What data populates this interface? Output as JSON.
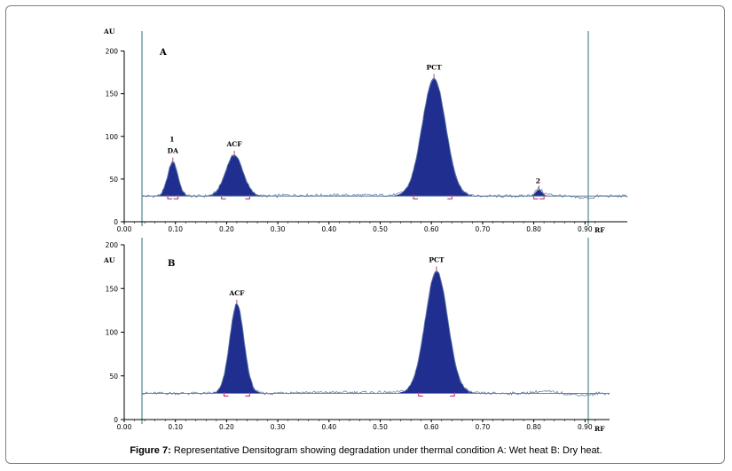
{
  "caption": {
    "label": "Figure 7:",
    "text": "Representative Densitogram showing degradation under thermal condition A: Wet heat B: Dry heat."
  },
  "colors": {
    "peak_fill": "#1f2e8f",
    "baseline": "#6a85a6",
    "frame_axis": "#2d6f78",
    "bracket": "#c0196f"
  },
  "chart_data": [
    {
      "type": "area",
      "panel_label": "A",
      "xlabel": "RF",
      "ylabel": "AU",
      "xlim": [
        0.0,
        0.92
      ],
      "ylim": [
        0,
        200
      ],
      "x_ticks": [
        "0.00",
        "0.10",
        "0.20",
        "0.30",
        "0.40",
        "0.50",
        "0.60",
        "0.70",
        "0.80",
        "0.90"
      ],
      "y_ticks": [
        "0",
        "50",
        "100",
        "150",
        "200"
      ],
      "baseline": 30,
      "peaks": [
        {
          "label": "DA",
          "number": "1",
          "rf": 0.095,
          "height": 70,
          "width": 0.01,
          "x_start": 0.085,
          "x_end": 0.105
        },
        {
          "label": "ACF",
          "number": "",
          "rf": 0.215,
          "height": 78,
          "width": 0.017,
          "x_start": 0.19,
          "x_end": 0.245
        },
        {
          "label": "PCT",
          "number": "",
          "rf": 0.605,
          "height": 168,
          "width": 0.023,
          "x_start": 0.565,
          "x_end": 0.64
        },
        {
          "label": "",
          "number": "2",
          "rf": 0.81,
          "height": 37,
          "width": 0.006,
          "x_start": 0.8,
          "x_end": 0.82
        }
      ]
    },
    {
      "type": "area",
      "panel_label": "B",
      "xlabel": "RF",
      "ylabel": "AU",
      "xlim": [
        0.0,
        0.92
      ],
      "ylim": [
        0,
        200
      ],
      "x_ticks": [
        "0.00",
        "0.10",
        "0.20",
        "0.30",
        "0.40",
        "0.50",
        "0.60",
        "0.70",
        "0.80",
        "0.90"
      ],
      "y_ticks": [
        "0",
        "50",
        "100",
        "150",
        "200"
      ],
      "baseline": 30,
      "peaks": [
        {
          "label": "ACF",
          "number": "",
          "rf": 0.22,
          "height": 132,
          "width": 0.014,
          "x_start": 0.195,
          "x_end": 0.245
        },
        {
          "label": "PCT",
          "number": "",
          "rf": 0.61,
          "height": 170,
          "width": 0.022,
          "x_start": 0.575,
          "x_end": 0.645
        }
      ]
    }
  ]
}
